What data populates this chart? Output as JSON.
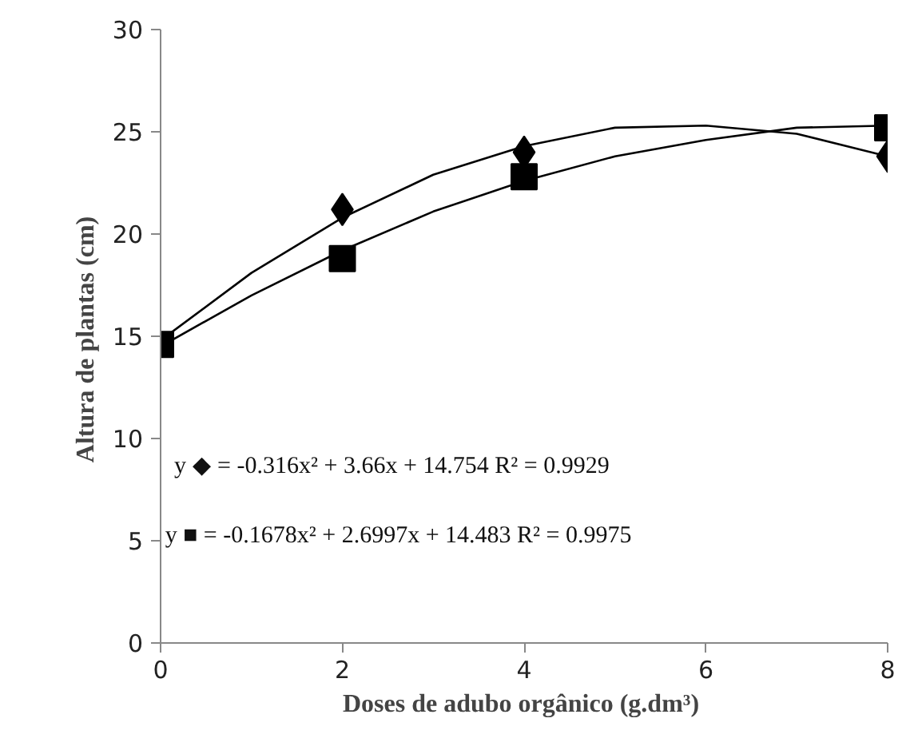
{
  "chart_data": {
    "type": "scatter",
    "xlabel": "Doses de adubo  orgânico (g.dm³)",
    "ylabel": "Altura de plantas  (cm)",
    "x": [
      0,
      2,
      4,
      8
    ],
    "series": [
      {
        "marker": "diamond",
        "color": "#000000",
        "values": [
          null,
          21.2,
          24.0,
          23.8
        ]
      },
      {
        "marker": "square",
        "color": "#000000",
        "values": [
          14.6,
          18.8,
          22.8,
          25.2
        ]
      },
      {
        "type": "line",
        "marker": "none",
        "color": "#000000",
        "x": [
          0,
          1,
          2,
          3,
          4,
          5,
          6,
          7,
          8
        ],
        "values": [
          14.8,
          18.1,
          20.8,
          22.9,
          24.3,
          25.2,
          25.3,
          24.9,
          23.8
        ]
      },
      {
        "type": "line",
        "marker": "none",
        "color": "#000000",
        "x": [
          0,
          1,
          2,
          3,
          4,
          5,
          6,
          7,
          8
        ],
        "values": [
          14.5,
          17.0,
          19.2,
          21.1,
          22.6,
          23.8,
          24.6,
          25.2,
          25.3
        ]
      }
    ],
    "annotations": [
      "y ◆ = -0.316x² + 3.66x + 14.754 R² = 0.9929",
      "y ■ = -0.1678x² + 2.6997x + 14.483 R² = 0.9975"
    ],
    "xlim": [
      0,
      8
    ],
    "ylim": [
      0,
      30
    ],
    "xticks": [
      0,
      2,
      4,
      6,
      8
    ],
    "yticks": [
      0,
      5,
      10,
      15,
      20,
      25,
      30
    ],
    "grid": false
  }
}
